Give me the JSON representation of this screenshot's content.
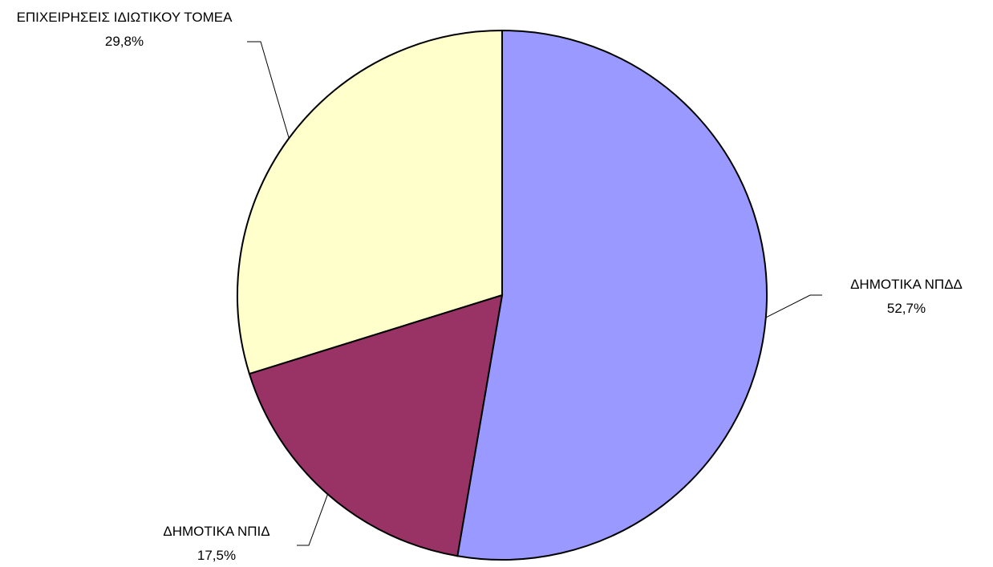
{
  "chart_data": {
    "type": "pie",
    "categories": [
      "ΔΗΜΟΤΙΚΑ ΝΠΔΔ",
      "ΔΗΜΟΤΙΚΑ ΝΠΙΔ",
      "ΕΠΙΧΕΙΡΗΣΕΙΣ ΙΔΙΩΤΙΚΟΥ ΤΟΜΕΑ"
    ],
    "values": [
      52.7,
      17.5,
      29.8
    ],
    "value_labels": [
      "52,7%",
      "17,5%",
      "29,8%"
    ],
    "colors": [
      "#9999ff",
      "#993366",
      "#ffffcc"
    ]
  }
}
